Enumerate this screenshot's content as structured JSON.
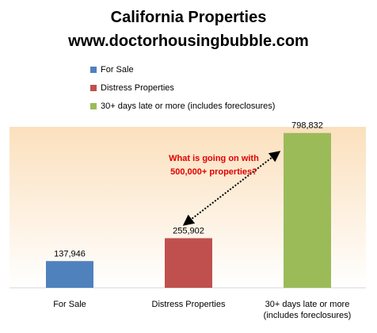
{
  "chart_data": {
    "type": "bar",
    "title": "California Properties",
    "subtitle": "www.doctorhousingbubble.com",
    "categories": [
      "For Sale",
      "Distress Properties",
      "30+ days late or more (includes foreclosures)"
    ],
    "category_lines": [
      [
        "For Sale"
      ],
      [
        "Distress Properties"
      ],
      [
        "30+ days late or more",
        "(includes foreclosures)"
      ]
    ],
    "values": [
      137946,
      255902,
      798832
    ],
    "value_labels": [
      "137,946",
      "255,902",
      "798,832"
    ],
    "colors": [
      "#4f81bd",
      "#c0504d",
      "#9bbb59"
    ],
    "legend": [
      "For Sale",
      "Distress Properties",
      "30+ days late or more (includes foreclosures)"
    ],
    "legend_position": "top-left",
    "annotation": [
      "What is going on with",
      "500,000+ properties?"
    ],
    "annotation_color": "#e00000",
    "ylim": [
      0,
      900000
    ],
    "grid": false,
    "background": "gradient-cream"
  }
}
